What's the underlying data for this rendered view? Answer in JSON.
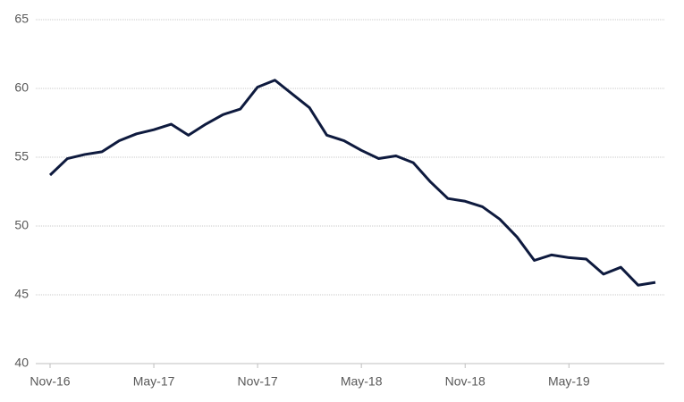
{
  "chart_data": {
    "type": "line",
    "categories": [
      "Nov-16",
      null,
      null,
      null,
      null,
      null,
      "May-17",
      null,
      null,
      null,
      null,
      null,
      "Nov-17",
      null,
      null,
      null,
      null,
      null,
      "May-18",
      null,
      null,
      null,
      null,
      null,
      "Nov-18",
      null,
      null,
      null,
      null,
      null,
      "May-19",
      null,
      null,
      null,
      null,
      null
    ],
    "series": [
      {
        "color": "#0e1a3e",
        "values": [
          53.7,
          54.9,
          55.2,
          55.4,
          56.2,
          56.7,
          57.0,
          57.4,
          56.6,
          57.4,
          58.1,
          58.5,
          60.1,
          60.6,
          59.6,
          58.6,
          56.6,
          56.2,
          55.5,
          54.9,
          55.1,
          54.6,
          53.2,
          52.0,
          51.8,
          51.4,
          50.5,
          49.2,
          47.5,
          47.9,
          47.7,
          47.6,
          46.5,
          47.0,
          45.7,
          45.9
        ]
      }
    ],
    "ylim": [
      40,
      65
    ],
    "yticks": [
      40,
      45,
      50,
      55,
      60,
      65
    ],
    "grid": true
  }
}
